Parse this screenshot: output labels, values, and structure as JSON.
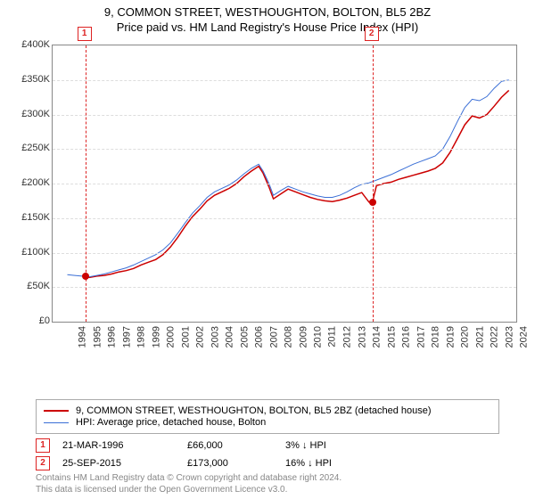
{
  "title_line1": "9, COMMON STREET, WESTHOUGHTON, BOLTON, BL5 2BZ",
  "title_line2": "Price paid vs. HM Land Registry's House Price Index (HPI)",
  "chart": {
    "type": "line",
    "background_color": "#ffffff",
    "grid_color": "#dddddd",
    "axis_color": "#888888",
    "x_years": [
      1994,
      1995,
      1996,
      1997,
      1998,
      1999,
      2000,
      2001,
      2002,
      2003,
      2004,
      2005,
      2006,
      2007,
      2008,
      2009,
      2010,
      2011,
      2012,
      2013,
      2014,
      2015,
      2016,
      2017,
      2018,
      2019,
      2020,
      2021,
      2022,
      2023,
      2024,
      2025
    ],
    "xlim": [
      1994,
      2025.5
    ],
    "ylim": [
      0,
      400000
    ],
    "ytick_step": 50000,
    "y_tick_labels": [
      "£0",
      "£50K",
      "£100K",
      "£150K",
      "£200K",
      "£250K",
      "£300K",
      "£350K",
      "£400K"
    ],
    "label_fontsize": 11,
    "series": [
      {
        "name": "9, COMMON STREET, WESTHOUGHTON, BOLTON, BL5 2BZ (detached house)",
        "color": "#cc0000",
        "line_width": 1.5,
        "data": [
          [
            1996.22,
            66000
          ],
          [
            1996.5,
            64000
          ],
          [
            1997,
            66000
          ],
          [
            1997.5,
            67000
          ],
          [
            1998,
            69000
          ],
          [
            1998.5,
            72000
          ],
          [
            1999,
            74000
          ],
          [
            1999.5,
            77000
          ],
          [
            2000,
            82000
          ],
          [
            2000.5,
            86000
          ],
          [
            2001,
            90000
          ],
          [
            2001.5,
            97000
          ],
          [
            2002,
            108000
          ],
          [
            2002.5,
            122000
          ],
          [
            2003,
            138000
          ],
          [
            2003.5,
            152000
          ],
          [
            2004,
            163000
          ],
          [
            2004.5,
            175000
          ],
          [
            2005,
            183000
          ],
          [
            2005.5,
            188000
          ],
          [
            2006,
            193000
          ],
          [
            2006.5,
            200000
          ],
          [
            2007,
            210000
          ],
          [
            2007.5,
            218000
          ],
          [
            2008,
            225000
          ],
          [
            2008.3,
            215000
          ],
          [
            2008.7,
            195000
          ],
          [
            2009,
            178000
          ],
          [
            2009.5,
            185000
          ],
          [
            2010,
            192000
          ],
          [
            2010.5,
            188000
          ],
          [
            2011,
            184000
          ],
          [
            2011.5,
            180000
          ],
          [
            2012,
            177000
          ],
          [
            2012.5,
            175000
          ],
          [
            2013,
            174000
          ],
          [
            2013.5,
            176000
          ],
          [
            2014,
            179000
          ],
          [
            2014.5,
            183000
          ],
          [
            2015,
            187000
          ],
          [
            2015.5,
            173000
          ],
          [
            2015.73,
            173000
          ],
          [
            2016,
            197000
          ],
          [
            2016.5,
            200000
          ],
          [
            2017,
            202000
          ],
          [
            2017.5,
            206000
          ],
          [
            2018,
            209000
          ],
          [
            2018.5,
            212000
          ],
          [
            2019,
            215000
          ],
          [
            2019.5,
            218000
          ],
          [
            2020,
            222000
          ],
          [
            2020.5,
            230000
          ],
          [
            2021,
            245000
          ],
          [
            2021.5,
            265000
          ],
          [
            2022,
            285000
          ],
          [
            2022.5,
            298000
          ],
          [
            2023,
            295000
          ],
          [
            2023.5,
            300000
          ],
          [
            2024,
            312000
          ],
          [
            2024.5,
            325000
          ],
          [
            2025,
            335000
          ]
        ]
      },
      {
        "name": "HPI: Average price, detached house, Bolton",
        "color": "#3b6fd6",
        "line_width": 1,
        "data": [
          [
            1995,
            68000
          ],
          [
            1995.5,
            67000
          ],
          [
            1996,
            66000
          ],
          [
            1996.5,
            65000
          ],
          [
            1997,
            67000
          ],
          [
            1997.5,
            69000
          ],
          [
            1998,
            72000
          ],
          [
            1998.5,
            75000
          ],
          [
            1999,
            78000
          ],
          [
            1999.5,
            82000
          ],
          [
            2000,
            87000
          ],
          [
            2000.5,
            92000
          ],
          [
            2001,
            97000
          ],
          [
            2001.5,
            104000
          ],
          [
            2002,
            114000
          ],
          [
            2002.5,
            128000
          ],
          [
            2003,
            143000
          ],
          [
            2003.5,
            157000
          ],
          [
            2004,
            168000
          ],
          [
            2004.5,
            180000
          ],
          [
            2005,
            188000
          ],
          [
            2005.5,
            193000
          ],
          [
            2006,
            198000
          ],
          [
            2006.5,
            205000
          ],
          [
            2007,
            214000
          ],
          [
            2007.5,
            222000
          ],
          [
            2008,
            228000
          ],
          [
            2008.3,
            218000
          ],
          [
            2008.7,
            200000
          ],
          [
            2009,
            183000
          ],
          [
            2009.5,
            190000
          ],
          [
            2010,
            196000
          ],
          [
            2010.5,
            192000
          ],
          [
            2011,
            188000
          ],
          [
            2011.5,
            185000
          ],
          [
            2012,
            182000
          ],
          [
            2012.5,
            180000
          ],
          [
            2013,
            180000
          ],
          [
            2013.5,
            183000
          ],
          [
            2014,
            188000
          ],
          [
            2014.5,
            194000
          ],
          [
            2015,
            199000
          ],
          [
            2015.5,
            201000
          ],
          [
            2016,
            205000
          ],
          [
            2016.5,
            209000
          ],
          [
            2017,
            213000
          ],
          [
            2017.5,
            218000
          ],
          [
            2018,
            223000
          ],
          [
            2018.5,
            228000
          ],
          [
            2019,
            232000
          ],
          [
            2019.5,
            236000
          ],
          [
            2020,
            240000
          ],
          [
            2020.5,
            250000
          ],
          [
            2021,
            268000
          ],
          [
            2021.5,
            290000
          ],
          [
            2022,
            310000
          ],
          [
            2022.5,
            322000
          ],
          [
            2023,
            320000
          ],
          [
            2023.5,
            326000
          ],
          [
            2024,
            338000
          ],
          [
            2024.5,
            348000
          ],
          [
            2025,
            350000
          ]
        ]
      }
    ],
    "event_markers": [
      {
        "n": "1",
        "year": 1996.22,
        "price": 66000,
        "color": "#cc0000"
      },
      {
        "n": "2",
        "year": 2015.73,
        "price": 173000,
        "color": "#cc0000"
      }
    ]
  },
  "legend": {
    "items": [
      {
        "color": "#cc0000",
        "width": 2,
        "label": "9, COMMON STREET, WESTHOUGHTON, BOLTON, BL5 2BZ (detached house)"
      },
      {
        "color": "#3b6fd6",
        "width": 1,
        "label": "HPI: Average price, detached house, Bolton"
      }
    ]
  },
  "events": [
    {
      "n": "1",
      "date": "21-MAR-1996",
      "price": "£66,000",
      "pct": "3% ↓ HPI"
    },
    {
      "n": "2",
      "date": "25-SEP-2015",
      "price": "£173,000",
      "pct": "16% ↓ HPI"
    }
  ],
  "footer_line1": "Contains HM Land Registry data © Crown copyright and database right 2024.",
  "footer_line2": "This data is licensed under the Open Government Licence v3.0."
}
